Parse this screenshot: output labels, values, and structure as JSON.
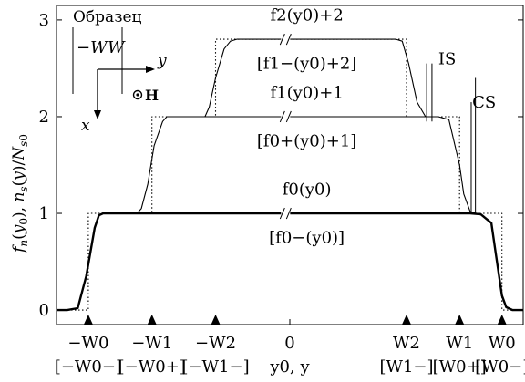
{
  "chart_data": {
    "type": "line",
    "xlabel": "y0, y",
    "ylabel": "fn(y0), ns(y)/Ns0",
    "xlim": [
      -1.1,
      1.1
    ],
    "ylim": [
      -0.15,
      3.15
    ],
    "y_ticks": [
      "0",
      "1",
      "2",
      "3"
    ],
    "x_ticks": [
      {
        "x": -0.95,
        "top": "−W0",
        "bottom": "[−W0−]"
      },
      {
        "x": -0.65,
        "top": "−W1",
        "bottom": "[−W0+]"
      },
      {
        "x": -0.35,
        "top": "−W2",
        "bottom": "[−W1−]"
      },
      {
        "x": 0.0,
        "top": "0",
        "bottom": "y0, y"
      },
      {
        "x": 0.55,
        "top": "W2",
        "bottom": "[W1−]"
      },
      {
        "x": 0.8,
        "top": "W1",
        "bottom": "[W0+]"
      },
      {
        "x": 1.0,
        "top": "W0",
        "bottom": "[W0−]"
      }
    ],
    "series": [
      {
        "style": "thick",
        "x": [
          -1.1,
          -1.05,
          -1.0,
          -0.96,
          -0.92,
          -0.9,
          -0.88,
          -0.85,
          -0.8,
          -0.75,
          -0.7,
          -0.65,
          -0.6,
          -0.58,
          -0.5,
          -0.3,
          0.0,
          0.3,
          0.5,
          0.6,
          0.65,
          0.7,
          0.75,
          0.8,
          0.82,
          0.85,
          0.9,
          0.95,
          0.97,
          1.0,
          1.02,
          1.05,
          1.1
        ],
        "y": [
          0.0,
          0.0,
          0.02,
          0.35,
          0.85,
          0.98,
          1.0,
          1.0,
          1.0,
          1.0,
          1.0,
          1.0,
          1.0,
          1.0,
          1.0,
          1.0,
          1.0,
          1.0,
          1.0,
          1.0,
          1.0,
          1.0,
          1.0,
          1.0,
          1.0,
          1.0,
          0.99,
          0.9,
          0.6,
          0.15,
          0.03,
          0.0,
          0.0
        ]
      },
      {
        "style": "thin",
        "x": [
          -0.72,
          -0.7,
          -0.67,
          -0.64,
          -0.6,
          -0.58,
          -0.5,
          0.0,
          0.55,
          0.6,
          0.63,
          0.65,
          0.7,
          0.75,
          0.8,
          0.82,
          0.85,
          0.88,
          0.9
        ],
        "y": [
          1.0,
          1.05,
          1.3,
          1.7,
          1.95,
          2.0,
          2.0,
          2.0,
          2.0,
          2.0,
          2.0,
          2.0,
          2.0,
          1.97,
          1.5,
          1.2,
          1.02,
          1.0,
          1.0
        ]
      },
      {
        "style": "thin",
        "x": [
          -0.4,
          -0.38,
          -0.35,
          -0.31,
          -0.28,
          -0.25,
          0.0,
          0.5,
          0.53,
          0.56,
          0.6,
          0.64
        ],
        "y": [
          2.0,
          2.1,
          2.4,
          2.7,
          2.78,
          2.8,
          2.8,
          2.8,
          2.78,
          2.55,
          2.15,
          2.0
        ]
      },
      {
        "style": "dotted",
        "x": [
          -1.1,
          -0.95,
          -0.95,
          -0.65,
          -0.65,
          -0.35,
          -0.35,
          0.55,
          0.55,
          0.8,
          0.8,
          1.0,
          1.0,
          1.1
        ],
        "y": [
          0.0,
          0.0,
          1.0,
          1.0,
          2.0,
          2.0,
          2.8,
          2.8,
          2.0,
          2.0,
          1.0,
          1.0,
          0.0,
          0.0
        ]
      }
    ],
    "labels": [
      {
        "text": "f2(y0)+2",
        "x": 0.08,
        "y": 3.05
      },
      {
        "text": "[f1−(y0)+2]",
        "x": 0.08,
        "y": 2.55
      },
      {
        "text": "f1(y0)+1",
        "x": 0.08,
        "y": 2.25
      },
      {
        "text": "[f0+(y0)+1]",
        "x": 0.08,
        "y": 1.75
      },
      {
        "text": "f0(y0)",
        "x": 0.08,
        "y": 1.25
      },
      {
        "text": "[f0−(y0)]",
        "x": 0.08,
        "y": 0.75
      },
      {
        "text": "IS",
        "x": 0.7,
        "y": 2.6
      },
      {
        "text": "CS",
        "x": 0.86,
        "y": 2.15
      }
    ],
    "inset": {
      "title": "Образец",
      "left_label": "−W",
      "right_label": "W",
      "axis_y": "y",
      "axis_x": "x",
      "field": "H"
    }
  }
}
